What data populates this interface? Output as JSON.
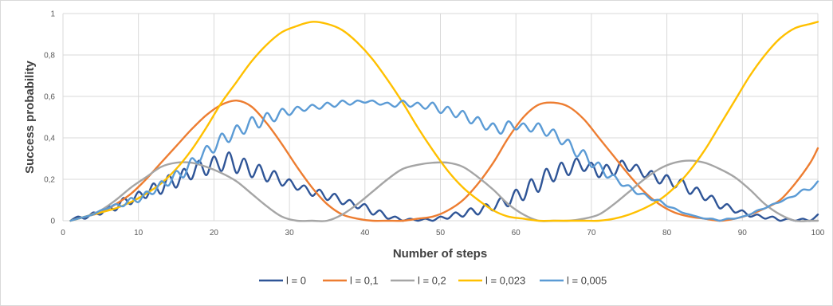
{
  "chart_data": {
    "type": "line",
    "title": "",
    "xlabel": "Number of steps",
    "ylabel": "Success probability",
    "xlim": [
      0,
      100
    ],
    "ylim": [
      0,
      1
    ],
    "xticks": [
      0,
      10,
      20,
      30,
      40,
      50,
      60,
      70,
      80,
      90,
      100
    ],
    "yticks": [
      0,
      0.2,
      0.4,
      0.6,
      0.8,
      1
    ],
    "ytick_labels": [
      "0",
      "0,2",
      "0,4",
      "0,6",
      "0,8",
      "1"
    ],
    "grid": true,
    "legend_position": "bottom",
    "series": [
      {
        "name": "l = 0",
        "color": "#2f5597",
        "x": [
          1,
          2,
          3,
          4,
          5,
          6,
          7,
          8,
          9,
          10,
          11,
          12,
          13,
          14,
          15,
          16,
          17,
          18,
          19,
          20,
          21,
          22,
          23,
          24,
          25,
          26,
          27,
          28,
          29,
          30,
          31,
          32,
          33,
          34,
          35,
          36,
          37,
          38,
          39,
          40,
          41,
          42,
          43,
          44,
          45,
          46,
          47,
          48,
          49,
          50,
          51,
          52,
          53,
          54,
          55,
          56,
          57,
          58,
          59,
          60,
          61,
          62,
          63,
          64,
          65,
          66,
          67,
          68,
          69,
          70,
          71,
          72,
          73,
          74,
          75,
          76,
          77,
          78,
          79,
          80,
          81,
          82,
          83,
          84,
          85,
          86,
          87,
          88,
          89,
          90,
          91,
          92,
          93,
          94,
          95,
          96,
          97,
          98,
          99,
          100
        ],
        "y": [
          0.0,
          0.02,
          0.01,
          0.04,
          0.03,
          0.07,
          0.05,
          0.11,
          0.08,
          0.14,
          0.11,
          0.18,
          0.13,
          0.22,
          0.16,
          0.25,
          0.2,
          0.29,
          0.22,
          0.31,
          0.24,
          0.33,
          0.23,
          0.3,
          0.21,
          0.27,
          0.19,
          0.24,
          0.17,
          0.2,
          0.15,
          0.17,
          0.12,
          0.15,
          0.1,
          0.13,
          0.08,
          0.1,
          0.06,
          0.08,
          0.03,
          0.05,
          0.01,
          0.02,
          0.0,
          0.01,
          0.0,
          0.01,
          0.0,
          0.02,
          0.01,
          0.04,
          0.02,
          0.06,
          0.03,
          0.08,
          0.05,
          0.11,
          0.07,
          0.15,
          0.1,
          0.2,
          0.14,
          0.25,
          0.19,
          0.28,
          0.22,
          0.3,
          0.24,
          0.28,
          0.21,
          0.27,
          0.22,
          0.29,
          0.24,
          0.27,
          0.21,
          0.24,
          0.18,
          0.22,
          0.16,
          0.2,
          0.13,
          0.16,
          0.1,
          0.12,
          0.06,
          0.08,
          0.04,
          0.05,
          0.02,
          0.03,
          0.01,
          0.02,
          0.0,
          0.01,
          0.0,
          0.01,
          0.0,
          0.03
        ]
      },
      {
        "name": "l = 0,1",
        "color": "#ed7d31",
        "x": [
          1,
          3,
          5,
          7,
          9,
          11,
          13,
          15,
          17,
          19,
          21,
          23,
          25,
          27,
          29,
          31,
          33,
          35,
          37,
          39,
          41,
          43,
          45,
          47,
          49,
          51,
          53,
          55,
          57,
          59,
          61,
          63,
          65,
          67,
          69,
          71,
          73,
          75,
          77,
          79,
          81,
          83,
          85,
          87,
          89,
          91,
          93,
          95,
          97,
          99,
          100
        ],
        "y": [
          0.0,
          0.02,
          0.04,
          0.08,
          0.13,
          0.2,
          0.28,
          0.36,
          0.44,
          0.51,
          0.56,
          0.58,
          0.55,
          0.47,
          0.37,
          0.26,
          0.16,
          0.08,
          0.03,
          0.01,
          0.0,
          0.0,
          0.0,
          0.01,
          0.02,
          0.05,
          0.1,
          0.18,
          0.28,
          0.4,
          0.5,
          0.56,
          0.57,
          0.55,
          0.49,
          0.4,
          0.31,
          0.22,
          0.14,
          0.08,
          0.04,
          0.02,
          0.01,
          0.0,
          0.01,
          0.03,
          0.06,
          0.1,
          0.18,
          0.28,
          0.35
        ]
      },
      {
        "name": "l = 0,2",
        "color": "#a5a5a5",
        "x": [
          1,
          3,
          5,
          7,
          9,
          11,
          13,
          15,
          17,
          19,
          21,
          23,
          25,
          27,
          29,
          31,
          33,
          35,
          37,
          39,
          41,
          43,
          45,
          47,
          49,
          51,
          53,
          55,
          57,
          59,
          61,
          63,
          65,
          67,
          69,
          71,
          73,
          75,
          77,
          79,
          81,
          83,
          85,
          87,
          89,
          91,
          93,
          95,
          97,
          99,
          100
        ],
        "y": [
          0.0,
          0.02,
          0.05,
          0.1,
          0.16,
          0.21,
          0.26,
          0.28,
          0.28,
          0.26,
          0.23,
          0.19,
          0.13,
          0.07,
          0.02,
          0.0,
          0.0,
          0.0,
          0.03,
          0.08,
          0.14,
          0.2,
          0.25,
          0.27,
          0.28,
          0.28,
          0.26,
          0.21,
          0.15,
          0.08,
          0.03,
          0.0,
          0.0,
          0.0,
          0.01,
          0.03,
          0.08,
          0.14,
          0.2,
          0.25,
          0.28,
          0.29,
          0.28,
          0.25,
          0.21,
          0.15,
          0.08,
          0.03,
          0.0,
          0.0,
          0.0
        ]
      },
      {
        "name": "l = 0,023",
        "color": "#ffc000",
        "x": [
          1,
          3,
          5,
          7,
          9,
          11,
          13,
          15,
          17,
          19,
          21,
          23,
          25,
          27,
          29,
          31,
          33,
          35,
          37,
          39,
          41,
          43,
          45,
          47,
          49,
          51,
          53,
          55,
          57,
          59,
          61,
          63,
          65,
          67,
          69,
          71,
          73,
          75,
          77,
          79,
          81,
          83,
          85,
          87,
          89,
          91,
          93,
          95,
          97,
          99,
          100
        ],
        "y": [
          0.0,
          0.02,
          0.04,
          0.06,
          0.09,
          0.13,
          0.18,
          0.25,
          0.34,
          0.45,
          0.57,
          0.67,
          0.77,
          0.85,
          0.91,
          0.94,
          0.96,
          0.95,
          0.92,
          0.86,
          0.78,
          0.68,
          0.57,
          0.45,
          0.34,
          0.24,
          0.16,
          0.1,
          0.05,
          0.02,
          0.01,
          0.0,
          0.0,
          0.0,
          0.0,
          0.0,
          0.01,
          0.03,
          0.06,
          0.1,
          0.16,
          0.24,
          0.34,
          0.46,
          0.58,
          0.7,
          0.8,
          0.88,
          0.93,
          0.95,
          0.96
        ]
      },
      {
        "name": "l = 0,005",
        "color": "#5b9bd5",
        "x": [
          1,
          2,
          3,
          4,
          5,
          6,
          7,
          8,
          9,
          10,
          11,
          12,
          13,
          14,
          15,
          16,
          17,
          18,
          19,
          20,
          21,
          22,
          23,
          24,
          25,
          26,
          27,
          28,
          29,
          30,
          31,
          32,
          33,
          34,
          35,
          36,
          37,
          38,
          39,
          40,
          41,
          42,
          43,
          44,
          45,
          46,
          47,
          48,
          49,
          50,
          51,
          52,
          53,
          54,
          55,
          56,
          57,
          58,
          59,
          60,
          61,
          62,
          63,
          64,
          65,
          66,
          67,
          68,
          69,
          70,
          71,
          72,
          73,
          74,
          75,
          76,
          77,
          78,
          79,
          80,
          81,
          82,
          83,
          84,
          85,
          86,
          87,
          88,
          89,
          90,
          91,
          92,
          93,
          94,
          95,
          96,
          97,
          98,
          99,
          100
        ],
        "y": [
          0.0,
          0.01,
          0.02,
          0.03,
          0.05,
          0.06,
          0.08,
          0.07,
          0.11,
          0.09,
          0.14,
          0.13,
          0.19,
          0.17,
          0.24,
          0.21,
          0.3,
          0.28,
          0.36,
          0.33,
          0.42,
          0.38,
          0.46,
          0.42,
          0.5,
          0.45,
          0.52,
          0.48,
          0.54,
          0.51,
          0.55,
          0.53,
          0.56,
          0.54,
          0.57,
          0.55,
          0.58,
          0.56,
          0.58,
          0.57,
          0.58,
          0.56,
          0.57,
          0.55,
          0.58,
          0.55,
          0.57,
          0.54,
          0.57,
          0.52,
          0.55,
          0.5,
          0.53,
          0.47,
          0.5,
          0.44,
          0.47,
          0.42,
          0.48,
          0.44,
          0.47,
          0.43,
          0.47,
          0.41,
          0.44,
          0.37,
          0.39,
          0.31,
          0.34,
          0.26,
          0.28,
          0.21,
          0.22,
          0.17,
          0.17,
          0.13,
          0.13,
          0.1,
          0.1,
          0.07,
          0.06,
          0.04,
          0.03,
          0.02,
          0.01,
          0.01,
          0.0,
          0.01,
          0.01,
          0.02,
          0.03,
          0.05,
          0.06,
          0.08,
          0.09,
          0.11,
          0.12,
          0.15,
          0.15,
          0.19
        ]
      }
    ]
  }
}
